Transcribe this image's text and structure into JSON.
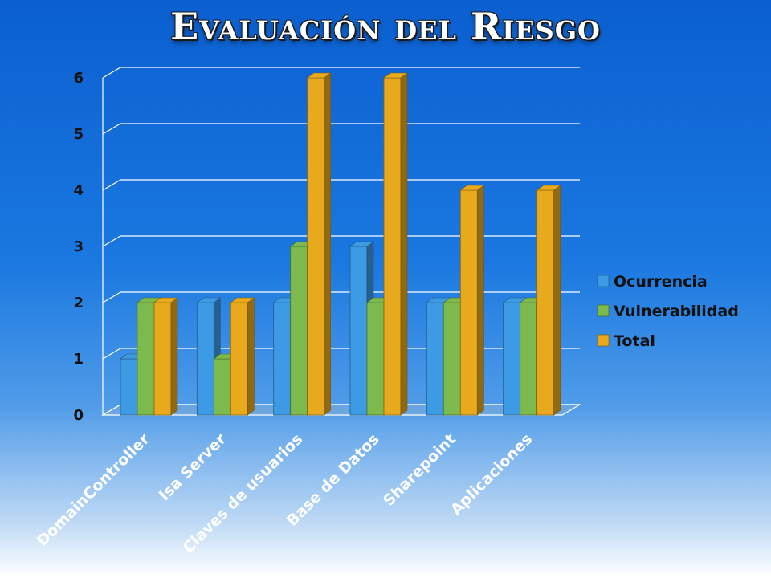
{
  "title": "Evaluación del Riesgo",
  "chart_data": {
    "type": "bar",
    "title": "",
    "categories": [
      "DomainController",
      "Isa Server",
      "Claves de usuarios",
      "Base de Datos",
      "Sharepoint",
      "Aplicaciones"
    ],
    "series": [
      {
        "name": "Ocurrencia",
        "values": [
          1,
          2,
          2,
          3,
          2,
          2
        ],
        "color": "#3d9be6"
      },
      {
        "name": "Vulnerabilidad",
        "values": [
          2,
          1,
          3,
          2,
          2,
          2
        ],
        "color": "#7dba4e"
      },
      {
        "name": "Total",
        "values": [
          2,
          2,
          6,
          6,
          4,
          4
        ],
        "color": "#e8a91c"
      }
    ],
    "yticks": [
      "0",
      "1",
      "2",
      "3",
      "4",
      "5",
      "6"
    ],
    "ylim": [
      0,
      6
    ],
    "grid": true,
    "legend": "right",
    "style": "3d-clustered-bar"
  }
}
